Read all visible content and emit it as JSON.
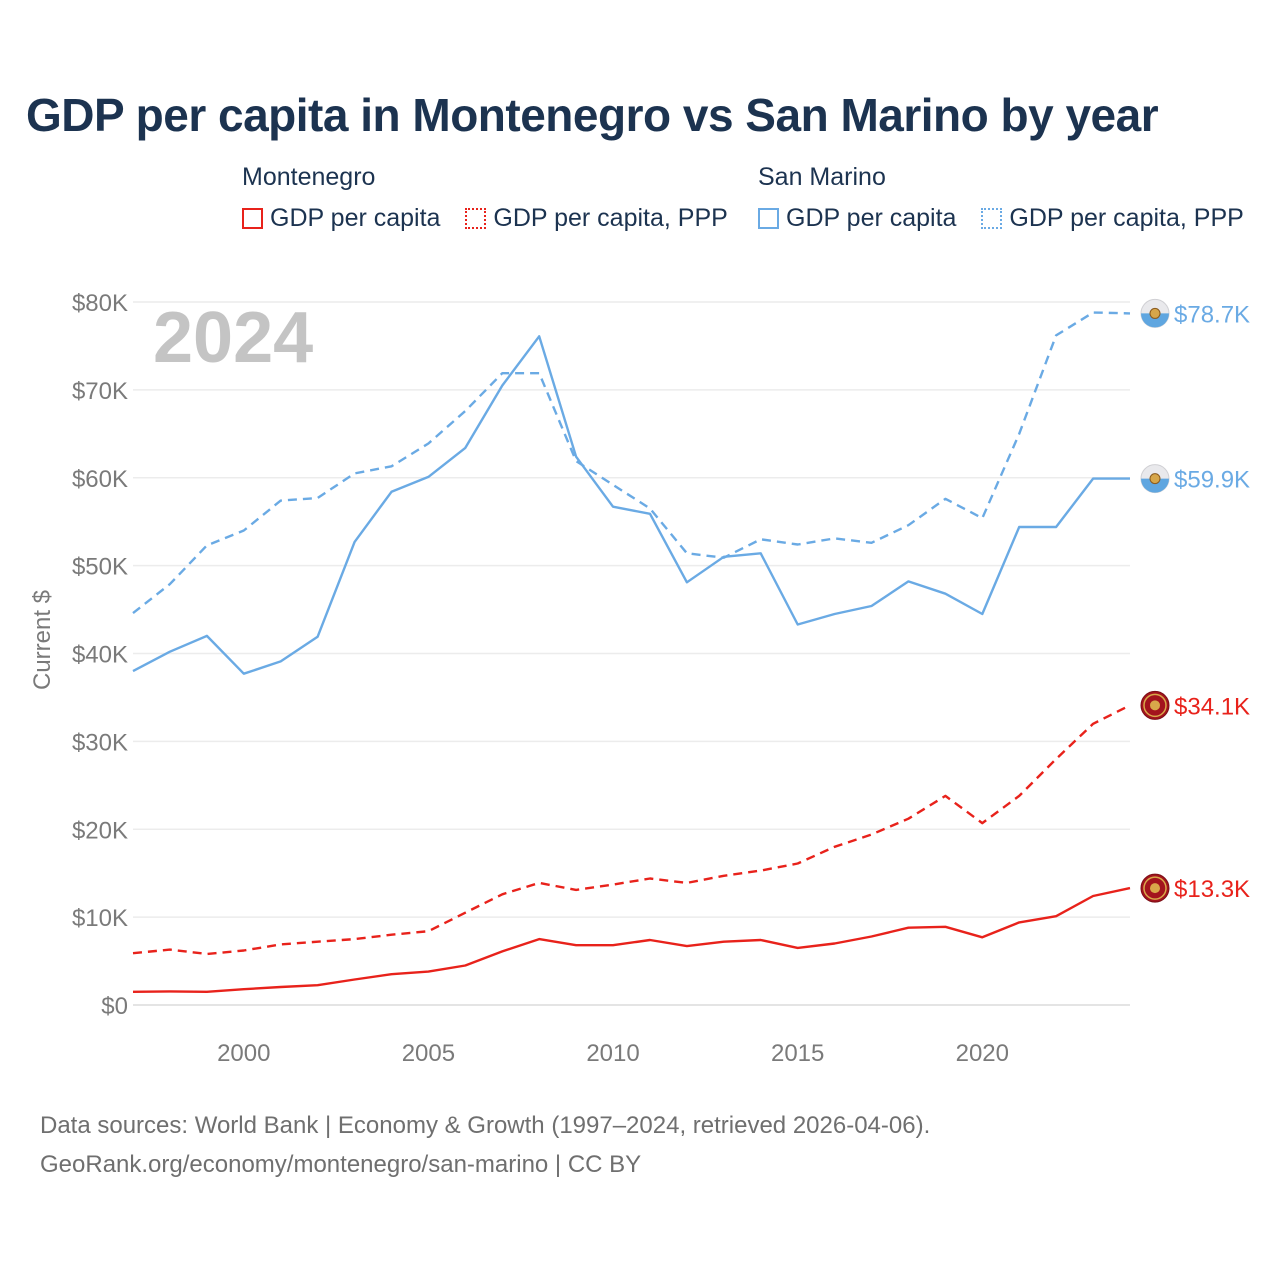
{
  "title": "GDP per capita in Montenegro vs San Marino by year",
  "legend": {
    "groups": [
      {
        "name": "Montenegro",
        "color": "#e8221b",
        "items": [
          "GDP per capita",
          "GDP per capita, PPP"
        ]
      },
      {
        "name": "San Marino",
        "color": "#6aaae4",
        "items": [
          "GDP per capita",
          "GDP per capita, PPP"
        ]
      }
    ]
  },
  "year_watermark": "2024",
  "source_line1": "Data sources: World Bank | Economy & Growth (1997–2024, retrieved 2026-04-06).",
  "source_line2": "GeoRank.org/economy/montenegro/san-marino | CC BY",
  "chart_data": {
    "type": "line",
    "title": "GDP per capita in Montenegro vs San Marino by year",
    "xlabel": "",
    "ylabel": "Current $",
    "xlim": [
      1997,
      2024
    ],
    "ylim": [
      0,
      80000
    ],
    "grid": true,
    "x_ticks": [
      2000,
      2005,
      2010,
      2015,
      2020
    ],
    "x_tick_labels": [
      "2000",
      "2005",
      "2010",
      "2015",
      "2020"
    ],
    "y_ticks": [
      0,
      10000,
      20000,
      30000,
      40000,
      50000,
      60000,
      70000,
      80000
    ],
    "y_tick_labels": [
      "$0",
      "$10K",
      "$20K",
      "$30K",
      "$40K",
      "$50K",
      "$60K",
      "$70K",
      "$80K"
    ],
    "x": [
      1997,
      1998,
      1999,
      2000,
      2001,
      2002,
      2003,
      2004,
      2005,
      2006,
      2007,
      2008,
      2009,
      2010,
      2011,
      2012,
      2013,
      2014,
      2015,
      2016,
      2017,
      2018,
      2019,
      2020,
      2021,
      2022,
      2023,
      2024
    ],
    "series": [
      {
        "name": "San Marino GDP per capita",
        "country": "San Marino",
        "style": "solid",
        "color": "#6aaae4",
        "end_label": "$59.9K",
        "values": [
          38000,
          40200,
          42000,
          37700,
          39100,
          41900,
          52700,
          58400,
          60100,
          63400,
          70500,
          76100,
          62400,
          56700,
          55900,
          48100,
          51000,
          51400,
          43300,
          44500,
          45400,
          48200,
          46800,
          44500,
          54400,
          54400,
          59900,
          59900
        ]
      },
      {
        "name": "San Marino GDP per capita, PPP",
        "country": "San Marino",
        "style": "dashed",
        "color": "#6aaae4",
        "end_label": "$78.7K",
        "values": [
          44600,
          47900,
          52300,
          54000,
          57400,
          57700,
          60500,
          61300,
          63900,
          67600,
          71900,
          71900,
          61900,
          59200,
          56500,
          51400,
          50900,
          53000,
          52400,
          53100,
          52600,
          54600,
          57600,
          55400,
          65000,
          76200,
          78800,
          78700
        ]
      },
      {
        "name": "Montenegro GDP per capita",
        "country": "Montenegro",
        "style": "solid",
        "color": "#e8221b",
        "end_label": "$13.3K",
        "values": [
          1500,
          1550,
          1500,
          1800,
          2050,
          2250,
          2900,
          3500,
          3800,
          4500,
          6100,
          7500,
          6800,
          6800,
          7400,
          6700,
          7200,
          7400,
          6500,
          7000,
          7800,
          8800,
          8900,
          7700,
          9400,
          10100,
          12400,
          13300
        ]
      },
      {
        "name": "Montenegro GDP per capita, PPP",
        "country": "Montenegro",
        "style": "dashed",
        "color": "#e8221b",
        "end_label": "$34.1K",
        "values": [
          5900,
          6300,
          5800,
          6200,
          6900,
          7200,
          7500,
          8000,
          8400,
          10500,
          12600,
          13900,
          13100,
          13700,
          14400,
          13900,
          14700,
          15300,
          16100,
          18000,
          19400,
          21200,
          23800,
          20700,
          23800,
          28000,
          32000,
          34100
        ]
      }
    ]
  }
}
